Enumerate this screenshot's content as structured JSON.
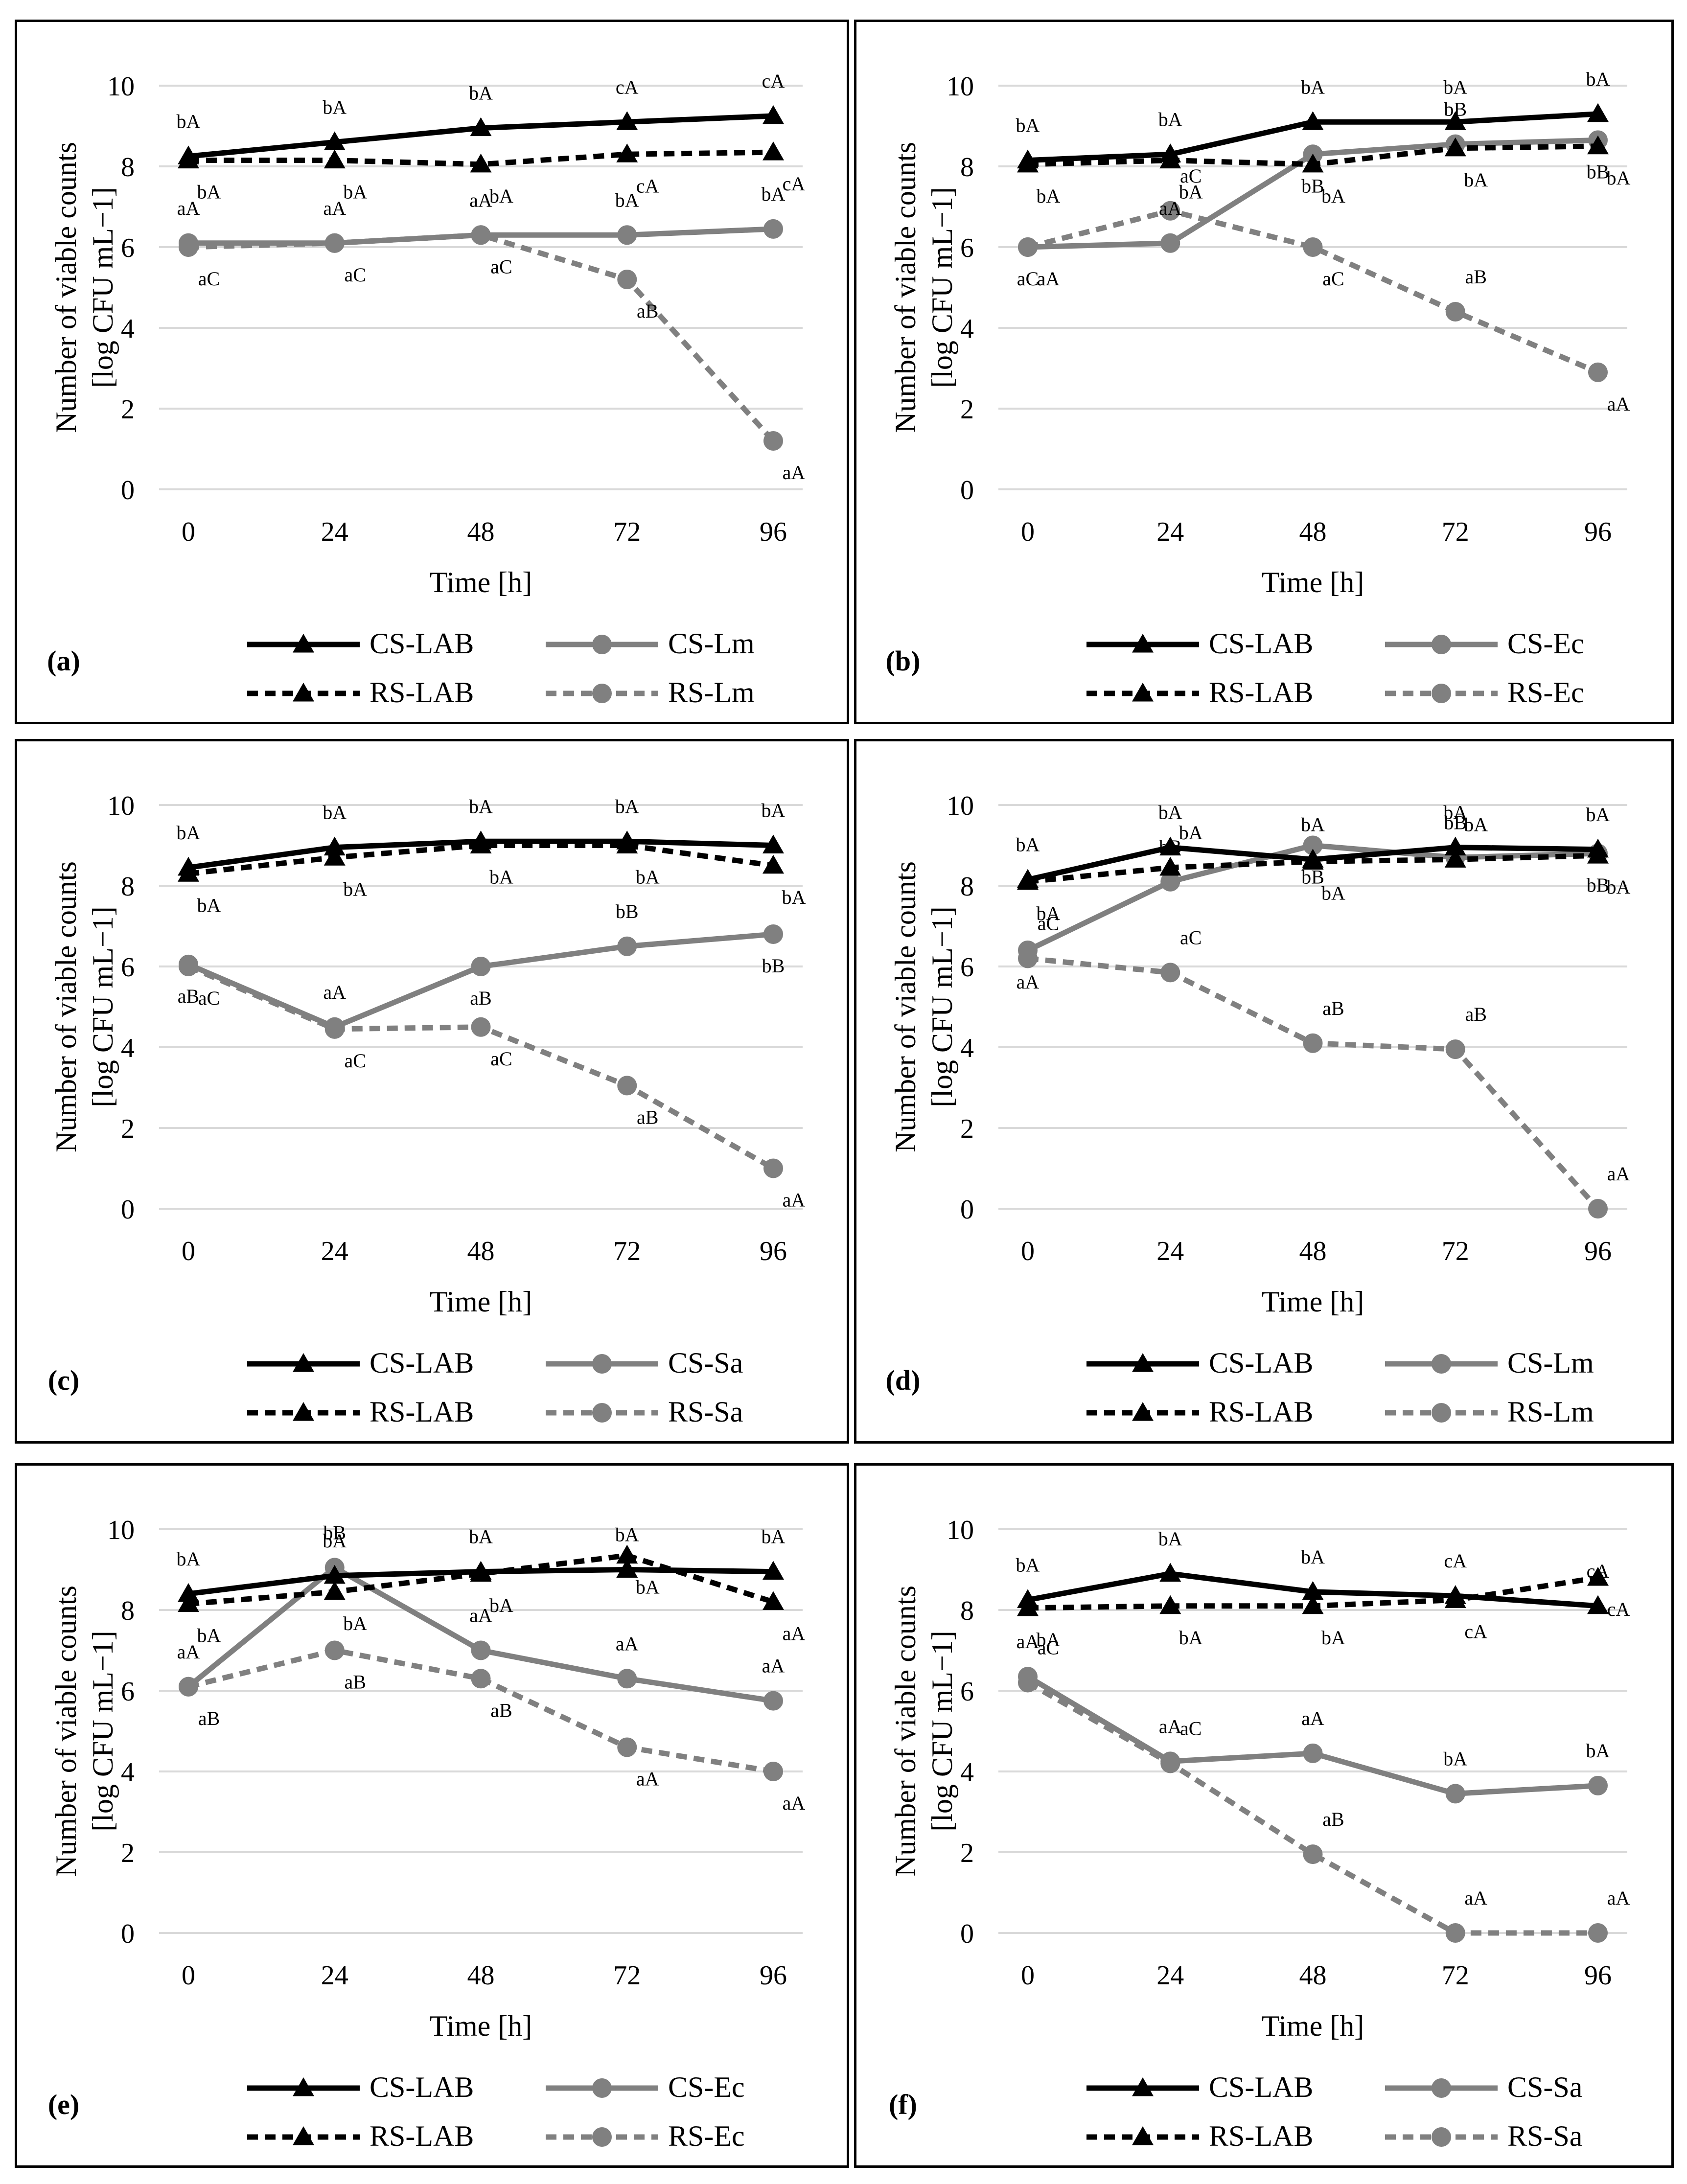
{
  "chart_data": [
    {
      "type": "line",
      "panel_label": "(a)",
      "xlabel": "Time [h]",
      "ylabel_line1": "Number of viable counts",
      "ylabel_line2": "[log CFU mL−1]",
      "x": [
        0,
        24,
        48,
        72,
        96
      ],
      "ylim": [
        0,
        10
      ],
      "yticks": [
        0,
        2,
        4,
        6,
        8,
        10
      ],
      "series": [
        {
          "name": "CS-LAB",
          "style": "cs-lab",
          "values": [
            8.25,
            8.6,
            8.95,
            9.1,
            9.25
          ],
          "labels": [
            "bA",
            "bA",
            "bA",
            "cA",
            "cA"
          ],
          "label_pos": "above"
        },
        {
          "name": "RS-LAB",
          "style": "rs-lab",
          "values": [
            8.15,
            8.15,
            8.05,
            8.3,
            8.35
          ],
          "labels": [
            "bA",
            "bA",
            "bA",
            "cA",
            "cA"
          ],
          "label_pos": "below"
        },
        {
          "name": "CS-Lm",
          "style": "cs-path",
          "values": [
            6.1,
            6.1,
            6.3,
            6.3,
            6.45
          ],
          "labels": [
            "aA",
            "aA",
            "aA",
            "bA",
            "bA"
          ],
          "label_pos": "above"
        },
        {
          "name": "RS-Lm",
          "style": "rs-path",
          "values": [
            6.0,
            6.1,
            6.3,
            5.2,
            1.2
          ],
          "labels": [
            "aC",
            "aC",
            "aC",
            "aB",
            "aA"
          ],
          "label_pos": "below"
        }
      ],
      "legend": [
        "CS-LAB",
        "CS-Lm",
        "RS-LAB",
        "RS-Lm"
      ]
    },
    {
      "type": "line",
      "panel_label": "(b)",
      "xlabel": "Time [h]",
      "ylabel_line1": "Number of viable counts",
      "ylabel_line2": "[log CFU mL−1]",
      "x": [
        0,
        24,
        48,
        72,
        96
      ],
      "ylim": [
        0,
        10
      ],
      "yticks": [
        0,
        2,
        4,
        6,
        8,
        10
      ],
      "series": [
        {
          "name": "CS-LAB",
          "style": "cs-lab",
          "values": [
            8.15,
            8.3,
            9.1,
            9.1,
            9.3
          ],
          "labels": [
            "bA",
            "bA",
            "bA",
            "bA",
            "bA"
          ],
          "label_pos": "above"
        },
        {
          "name": "RS-LAB",
          "style": "rs-lab",
          "values": [
            8.05,
            8.15,
            8.05,
            8.45,
            8.5
          ],
          "labels": [
            "bA",
            "bA",
            "bA",
            "bA",
            "bA"
          ],
          "label_pos": "below"
        },
        {
          "name": "CS-Ec",
          "style": "cs-path",
          "values": [
            6.0,
            6.1,
            8.3,
            8.55,
            8.65
          ],
          "labels": [
            "aC",
            "aA",
            "bB",
            "bB",
            "bB"
          ],
          "label_pos": "mixed"
        },
        {
          "name": "RS-Ec",
          "style": "rs-path",
          "values": [
            6.0,
            6.9,
            6.0,
            4.4,
            2.9
          ],
          "labels": [
            "aA",
            "aC",
            "aC",
            "aB",
            "aA"
          ],
          "label_pos": "mixed"
        }
      ],
      "legend": [
        "CS-LAB",
        "CS-Ec",
        "RS-LAB",
        "RS-Ec"
      ]
    },
    {
      "type": "line",
      "panel_label": "(c)",
      "xlabel": "Time [h]",
      "ylabel_line1": "Number of viable counts",
      "ylabel_line2": "[log CFU mL−1]",
      "x": [
        0,
        24,
        48,
        72,
        96
      ],
      "ylim": [
        0,
        10
      ],
      "yticks": [
        0,
        2,
        4,
        6,
        8,
        10
      ],
      "series": [
        {
          "name": "CS-LAB",
          "style": "cs-lab",
          "values": [
            8.45,
            8.95,
            9.1,
            9.1,
            9.0
          ],
          "labels": [
            "bA",
            "bA",
            "bA",
            "bA",
            "bA"
          ],
          "label_pos": "above"
        },
        {
          "name": "RS-LAB",
          "style": "rs-lab",
          "values": [
            8.3,
            8.7,
            9.0,
            9.0,
            8.5
          ],
          "labels": [
            "bA",
            "bA",
            "bA",
            "bA",
            "bA"
          ],
          "label_pos": "below"
        },
        {
          "name": "CS-Sa",
          "style": "cs-path",
          "values": [
            6.05,
            4.5,
            6.0,
            6.5,
            6.8
          ],
          "labels": [
            "aB",
            "aA",
            "aB",
            "bB",
            "bB"
          ],
          "label_pos": "mixed"
        },
        {
          "name": "RS-Sa",
          "style": "rs-path",
          "values": [
            6.0,
            4.45,
            4.5,
            3.05,
            1.0
          ],
          "labels": [
            "aC",
            "aC",
            "aC",
            "aB",
            "aA"
          ],
          "label_pos": "below"
        }
      ],
      "legend": [
        "CS-LAB",
        "CS-Sa",
        "RS-LAB",
        "RS-Sa"
      ]
    },
    {
      "type": "line",
      "panel_label": "(d)",
      "xlabel": "Time [h]",
      "ylabel_line1": "Number of viable counts",
      "ylabel_line2": "[log CFU mL−1]",
      "x": [
        0,
        24,
        48,
        72,
        96
      ],
      "ylim": [
        0,
        10
      ],
      "yticks": [
        0,
        2,
        4,
        6,
        8,
        10
      ],
      "series": [
        {
          "name": "CS-LAB",
          "style": "cs-lab",
          "values": [
            8.15,
            8.95,
            8.65,
            8.95,
            8.9
          ],
          "labels": [
            "bA",
            "bA",
            "bA",
            "bA",
            "bA"
          ],
          "label_pos": "above"
        },
        {
          "name": "RS-LAB",
          "style": "rs-lab",
          "values": [
            8.1,
            8.45,
            8.6,
            8.65,
            8.75
          ],
          "labels": [
            "bA",
            "bA",
            "bA",
            "bA",
            "bA"
          ],
          "label_pos": "mixed"
        },
        {
          "name": "CS-Lm",
          "style": "cs-path",
          "values": [
            6.4,
            8.1,
            9.0,
            8.7,
            8.8
          ],
          "labels": [
            "aA",
            "bB",
            "bB",
            "bB",
            "bB"
          ],
          "label_pos": "mixed"
        },
        {
          "name": "RS-Lm",
          "style": "rs-path",
          "values": [
            6.2,
            5.85,
            4.1,
            3.95,
            0.0
          ],
          "labels": [
            "aC",
            "aC",
            "aB",
            "aB",
            "aA"
          ],
          "label_pos": "above"
        }
      ],
      "legend": [
        "CS-LAB",
        "CS-Lm",
        "RS-LAB",
        "RS-Lm"
      ]
    },
    {
      "type": "line",
      "panel_label": "(e)",
      "xlabel": "Time [h]",
      "ylabel_line1": "Number of viable counts",
      "ylabel_line2": "[log CFU mL−1]",
      "x": [
        0,
        24,
        48,
        72,
        96
      ],
      "ylim": [
        0,
        10
      ],
      "yticks": [
        0,
        2,
        4,
        6,
        8,
        10
      ],
      "series": [
        {
          "name": "CS-LAB",
          "style": "cs-lab",
          "values": [
            8.4,
            8.85,
            8.95,
            9.0,
            8.95
          ],
          "labels": [
            "bA",
            "bA",
            "bA",
            "bA",
            "bA"
          ],
          "label_pos": "above"
        },
        {
          "name": "RS-LAB",
          "style": "rs-lab",
          "values": [
            8.15,
            8.45,
            8.9,
            9.35,
            8.2
          ],
          "labels": [
            "bA",
            "bA",
            "bA",
            "bA",
            "aA"
          ],
          "label_pos": "below"
        },
        {
          "name": "CS-Ec",
          "style": "cs-path",
          "values": [
            6.1,
            9.05,
            7.0,
            6.3,
            5.75
          ],
          "labels": [
            "aA",
            "bB",
            "aA",
            "aA",
            "aA"
          ],
          "label_pos": "above"
        },
        {
          "name": "RS-Ec",
          "style": "rs-path",
          "values": [
            6.1,
            7.0,
            6.3,
            4.6,
            4.0
          ],
          "labels": [
            "aB",
            "aB",
            "aB",
            "aA",
            "aA"
          ],
          "label_pos": "below"
        }
      ],
      "legend": [
        "CS-LAB",
        "CS-Ec",
        "RS-LAB",
        "RS-Ec"
      ]
    },
    {
      "type": "line",
      "panel_label": "(f)",
      "xlabel": "Time [h]",
      "ylabel_line1": "Number of viable counts",
      "ylabel_line2": "[log CFU mL−1]",
      "x": [
        0,
        24,
        48,
        72,
        96
      ],
      "ylim": [
        0,
        10
      ],
      "yticks": [
        0,
        2,
        4,
        6,
        8,
        10
      ],
      "series": [
        {
          "name": "CS-LAB",
          "style": "cs-lab",
          "values": [
            8.25,
            8.9,
            8.45,
            8.35,
            8.1
          ],
          "labels": [
            "bA",
            "bA",
            "bA",
            "cA",
            "cA"
          ],
          "label_pos": "above"
        },
        {
          "name": "RS-LAB",
          "style": "rs-lab",
          "values": [
            8.05,
            8.1,
            8.1,
            8.25,
            8.8
          ],
          "labels": [
            "bA",
            "bA",
            "bA",
            "cA",
            "cA"
          ],
          "label_pos": "below"
        },
        {
          "name": "CS-Sa",
          "style": "cs-path",
          "values": [
            6.35,
            4.25,
            4.45,
            3.45,
            3.65
          ],
          "labels": [
            "aA",
            "aA",
            "aA",
            "bA",
            "bA"
          ],
          "label_pos": "above"
        },
        {
          "name": "RS-Sa",
          "style": "rs-path",
          "values": [
            6.2,
            4.2,
            1.95,
            0.0,
            0.0
          ],
          "labels": [
            "aC",
            "aC",
            "aB",
            "aA",
            "aA"
          ],
          "label_pos": "above"
        }
      ],
      "legend": [
        "CS-LAB",
        "CS-Sa",
        "RS-LAB",
        "RS-Sa"
      ]
    }
  ],
  "colors": {
    "lab_line": "#000000",
    "pathogen_line": "#808080",
    "gridline": "#d9d9d9",
    "text": "#000000"
  }
}
